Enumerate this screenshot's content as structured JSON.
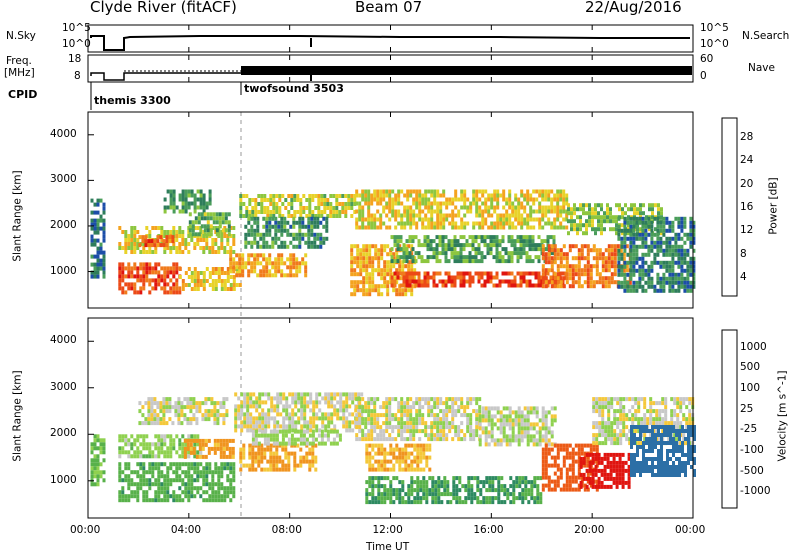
{
  "header": {
    "station": "Clyde River (fitACF)",
    "beam": "Beam 07",
    "date": "22/Aug/2016"
  },
  "status_panels": {
    "nsky_label": "N.Sky",
    "nsearch_label": "N.Search",
    "freq_label_1": "Freq.",
    "freq_label_2": "[MHz]",
    "nave_label": "Nave",
    "cpid_label": "CPID",
    "left_ticks_top": [
      "10^5",
      "10^0"
    ],
    "right_ticks_top": [
      "10^5",
      "10^0"
    ],
    "left_ticks_freq": [
      "18",
      "8"
    ],
    "right_ticks_nave": [
      "60",
      "0"
    ],
    "cpid_entries": [
      {
        "name": "themis 3300",
        "start_hour": 0
      },
      {
        "name": "twofsound 3503",
        "start_hour": 6
      }
    ]
  },
  "axes": {
    "x_ticks": [
      "00:00",
      "04:00",
      "08:00",
      "12:00",
      "16:00",
      "20:00",
      "00:00"
    ],
    "xlabel": "Time UT",
    "ylabel": "Slant Range [km]",
    "y_ticks": [
      "1000",
      "2000",
      "3000",
      "4000"
    ]
  },
  "colorbars": {
    "power": {
      "label": "Power [dB]",
      "ticks": [
        "4",
        "8",
        "12",
        "16",
        "20",
        "24",
        "28"
      ],
      "colors": [
        "#1a1aff",
        "#1c4ea8",
        "#2e7d5b",
        "#4a9d5a",
        "#8dc63f",
        "#e8d22a",
        "#f4a31f",
        "#f07a1c",
        "#ec4a17",
        "#e0140f"
      ]
    },
    "velocity": {
      "label": "Velocity [m s^-1]",
      "ticks": [
        "1000",
        "500",
        "100",
        "25",
        "-25",
        "-100",
        "-500",
        "-1000"
      ],
      "colors": [
        "#1b3da8",
        "#2c6fa6",
        "#2e8a61",
        "#58b14a",
        "#8fd14f",
        "#c8c8c8",
        "#f4c83a",
        "#f0941f",
        "#ec5a16",
        "#e0140f"
      ]
    }
  },
  "chart_data": [
    {
      "type": "heatmap",
      "title": "Power [dB]",
      "xlabel": "Time UT",
      "ylabel": "Slant Range [km]",
      "xlim": [
        0,
        24
      ],
      "ylim": [
        200,
        4500
      ],
      "bands": [
        {
          "t": [
            0.1,
            0.6
          ],
          "r": [
            900,
            2600
          ],
          "v": 9
        },
        {
          "t": [
            1.2,
            3.6
          ],
          "r": [
            500,
            1200
          ],
          "v": 27
        },
        {
          "t": [
            1.2,
            5.8
          ],
          "r": [
            1400,
            2000
          ],
          "v": 18
        },
        {
          "t": [
            2.0,
            3.4
          ],
          "r": [
            1600,
            1800
          ],
          "v": 26
        },
        {
          "t": [
            3.0,
            4.8
          ],
          "r": [
            2300,
            2800
          ],
          "v": 12
        },
        {
          "t": [
            3.6,
            6.0
          ],
          "r": [
            600,
            1100
          ],
          "v": 20
        },
        {
          "t": [
            4.0,
            5.6
          ],
          "r": [
            1800,
            2300
          ],
          "v": 14
        },
        {
          "t": [
            5.6,
            8.6
          ],
          "r": [
            900,
            1400
          ],
          "v": 22
        },
        {
          "t": [
            6.0,
            10.6
          ],
          "r": [
            2200,
            2700
          ],
          "v": 17
        },
        {
          "t": [
            6.2,
            9.5
          ],
          "r": [
            1500,
            2200
          ],
          "v": 11
        },
        {
          "t": [
            10.4,
            13.0
          ],
          "r": [
            500,
            1600
          ],
          "v": 21
        },
        {
          "t": [
            10.6,
            19.0
          ],
          "r": [
            2000,
            2800
          ],
          "v": 19
        },
        {
          "t": [
            12.0,
            19.0
          ],
          "r": [
            700,
            1000
          ],
          "v": 28
        },
        {
          "t": [
            12.0,
            18.5
          ],
          "r": [
            1200,
            1800
          ],
          "v": 13
        },
        {
          "t": [
            18.0,
            21.5
          ],
          "r": [
            700,
            1600
          ],
          "v": 24
        },
        {
          "t": [
            19.0,
            22.8
          ],
          "r": [
            1800,
            2500
          ],
          "v": 15
        },
        {
          "t": [
            21.0,
            24.0
          ],
          "r": [
            600,
            2200
          ],
          "v": 10
        }
      ]
    },
    {
      "type": "heatmap",
      "title": "Velocity [m s^-1]",
      "xlabel": "Time UT",
      "ylabel": "Slant Range [km]",
      "xlim": [
        0,
        24
      ],
      "ylim": [
        200,
        4500
      ],
      "bands": [
        {
          "t": [
            0.1,
            0.6
          ],
          "r": [
            900,
            2000
          ],
          "v": 120
        },
        {
          "t": [
            1.2,
            5.8
          ],
          "r": [
            600,
            1400
          ],
          "v": 200
        },
        {
          "t": [
            1.2,
            4.5
          ],
          "r": [
            1500,
            2000
          ],
          "v": 60
        },
        {
          "t": [
            3.8,
            5.8
          ],
          "r": [
            1500,
            1900
          ],
          "v": -150
        },
        {
          "t": [
            2.0,
            5.5
          ],
          "r": [
            2200,
            2800
          ],
          "v": 0
        },
        {
          "t": [
            5.8,
            10.8
          ],
          "r": [
            2100,
            2900
          ],
          "v": 0
        },
        {
          "t": [
            6.0,
            9.0
          ],
          "r": [
            1200,
            1800
          ],
          "v": -120
        },
        {
          "t": [
            6.5,
            10.0
          ],
          "r": [
            1800,
            2100
          ],
          "v": 40
        },
        {
          "t": [
            10.6,
            15.5
          ],
          "r": [
            1900,
            2800
          ],
          "v": 0
        },
        {
          "t": [
            11.0,
            18.0
          ],
          "r": [
            500,
            1100
          ],
          "v": 250
        },
        {
          "t": [
            11.0,
            13.5
          ],
          "r": [
            1200,
            1800
          ],
          "v": -90
        },
        {
          "t": [
            15.5,
            18.5
          ],
          "r": [
            1800,
            2600
          ],
          "v": 10
        },
        {
          "t": [
            18.0,
            20.2
          ],
          "r": [
            800,
            1800
          ],
          "v": -350
        },
        {
          "t": [
            19.5,
            21.5
          ],
          "r": [
            900,
            1600
          ],
          "v": -700
        },
        {
          "t": [
            20.0,
            24.0
          ],
          "r": [
            1800,
            2800
          ],
          "v": 0
        },
        {
          "t": [
            21.5,
            24.0
          ],
          "r": [
            1100,
            2200
          ],
          "v": 600
        }
      ]
    }
  ]
}
